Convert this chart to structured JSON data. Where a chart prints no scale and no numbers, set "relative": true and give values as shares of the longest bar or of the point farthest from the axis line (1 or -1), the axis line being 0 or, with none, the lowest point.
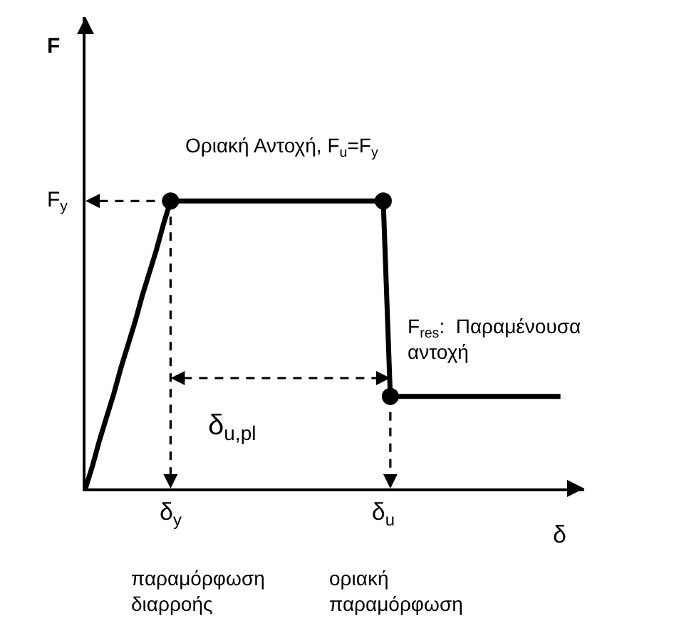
{
  "chart_data": {
    "type": "line",
    "relative": true,
    "xlabel": "δ",
    "categories": [
      null,
      null,
      null,
      null,
      null,
      null,
      null,
      null,
      null,
      null,
      null,
      null,
      "δ$_{y}$",
      null,
      null,
      null,
      null,
      null,
      null,
      null,
      null,
      null,
      null,
      null,
      null,
      null,
      null,
      null,
      null,
      null,
      null,
      null,
      null,
      null,
      null,
      null,
      null,
      null,
      null,
      null,
      null,
      null,
      "δ$_{u}$",
      null,
      null,
      null,
      null,
      null,
      null,
      null,
      null,
      null,
      null,
      null,
      null,
      null,
      null,
      null,
      null,
      null,
      null,
      null,
      null,
      null,
      null,
      null,
      null,
      null
    ],
    "series": [
      {
        "color": "#000000",
        "values": [
          0,
          0.08,
          0.17,
          0.25,
          0.33,
          0.42,
          0.5,
          0.58,
          0.67,
          0.75,
          0.83,
          0.92,
          1,
          1,
          1,
          1,
          1,
          1,
          1,
          1,
          1,
          1,
          1,
          1,
          1,
          1,
          1,
          1,
          1,
          1,
          1,
          1,
          1,
          1,
          1,
          1,
          1,
          1,
          1,
          1,
          1,
          1,
          1,
          0.32,
          0.32,
          0.32,
          0.32,
          0.32,
          0.32,
          0.32,
          0.32,
          0.32,
          0.32,
          0.32,
          0.32,
          0.32,
          0.32,
          0.32,
          0.32,
          0.32,
          0.32,
          0.32,
          0.32,
          0.32,
          0.32,
          0.32,
          0.32,
          0.32
        ]
      }
    ],
    "marker": "none",
    "line_style": "solid",
    "grid": false,
    "annotations": [
      "F",
      "F$_{y}$",
      "Οριακή Αντοχή, F$_{u}$=F$_{y}$",
      "F$_{res}$:  Παραμένουσα\nαντοχή",
      "δ$_{u,pl}$",
      "παραμόρφωση\nδιαρροής",
      "οριακή\nπαραμόρφωση"
    ]
  }
}
